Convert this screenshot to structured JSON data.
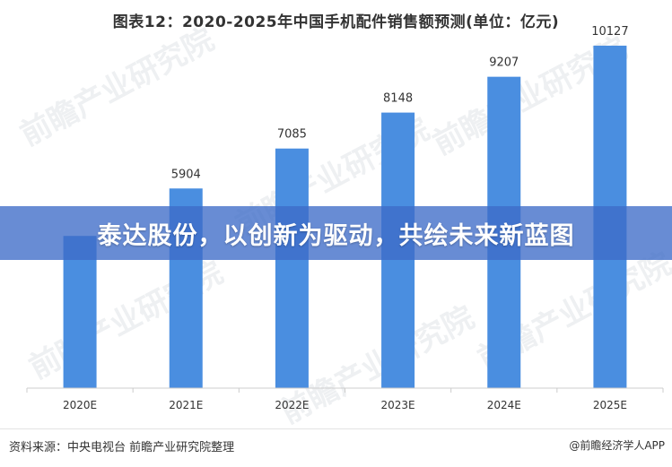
{
  "chart_data": {
    "type": "bar",
    "title": "图表12：2020-2025年中国手机配件销售额预测(单位：亿元)",
    "categories": [
      "2020E",
      "2021E",
      "2022E",
      "2023E",
      "2024E",
      "2025E"
    ],
    "values": [
      4500,
      5904,
      7085,
      8148,
      9207,
      10127
    ],
    "data_labels": [
      "",
      "5904",
      "7085",
      "8148",
      "9207",
      "10127"
    ],
    "ylim": [
      0,
      11000
    ],
    "bar_color": "#4a8ee0",
    "grid": false,
    "legend": "none"
  },
  "banner": {
    "text": "泰达股份，以创新为驱动，共绘未来新蓝图"
  },
  "footer": {
    "source": "资料来源：中央电视台 前瞻产业研究院整理",
    "brand": "@前瞻经济学人APP"
  },
  "watermark": {
    "text": "前瞻产业研究院"
  }
}
